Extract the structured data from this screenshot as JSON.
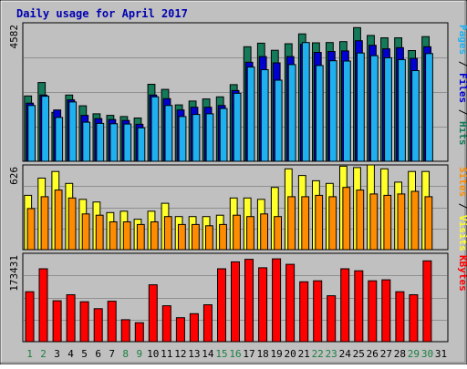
{
  "colors": {
    "background": "#c0c0c0",
    "title": "#0000b0",
    "pages": "#1fb0f0",
    "files": "#0000d0",
    "hits": "#147a5a",
    "visits": "#ffff2a",
    "sites": "#ff8c00",
    "kbytes": "#ff0000",
    "weekend_label": "#1a8040",
    "weekday_label": "#000000"
  },
  "chart_data": {
    "type": "bar",
    "title": "Daily usage for April 2017",
    "categories": [
      "1",
      "2",
      "3",
      "4",
      "5",
      "6",
      "7",
      "8",
      "9",
      "10",
      "11",
      "12",
      "13",
      "14",
      "15",
      "16",
      "17",
      "18",
      "19",
      "20",
      "21",
      "22",
      "23",
      "24",
      "25",
      "26",
      "27",
      "28",
      "29",
      "30",
      "31"
    ],
    "weekend_days": [
      "1",
      "2",
      "8",
      "9",
      "15",
      "16",
      "22",
      "23",
      "29",
      "30"
    ],
    "panels": [
      {
        "id": "requests",
        "axis_max_label": "4582",
        "ylim": [
          0,
          4582
        ],
        "grid": true,
        "legend_parts": [
          {
            "text": "Pages",
            "series": "Pages"
          },
          {
            "text": " / ",
            "series": null
          },
          {
            "text": "Files",
            "series": "Files"
          },
          {
            "text": " / ",
            "series": null
          },
          {
            "text": "Hits",
            "series": "Hits"
          }
        ],
        "series": [
          {
            "name": "Hits",
            "color": "#147a5a",
            "values": [
              2190,
              2640,
              1640,
              2220,
              1860,
              1590,
              1540,
              1500,
              1450,
              2580,
              2410,
              1890,
              2020,
              2090,
              2160,
              2570,
              3840,
              3960,
              3720,
              3940,
              4270,
              3970,
              3980,
              4010,
              4480,
              4220,
              4140,
              4140,
              3710,
              4180,
              0
            ]
          },
          {
            "name": "Files",
            "color": "#0000d0",
            "values": [
              1950,
              2220,
              1720,
              2060,
              1540,
              1430,
              1400,
              1370,
              1240,
              2220,
              2100,
              1720,
              1810,
              1810,
              1870,
              2370,
              3320,
              3510,
              3300,
              3510,
              3920,
              3650,
              3680,
              3700,
              4040,
              3890,
              3770,
              3810,
              3450,
              3840,
              0
            ]
          },
          {
            "name": "Pages",
            "color": "#1fb0f0",
            "values": [
              1870,
              2180,
              1470,
              1990,
              1310,
              1270,
              1260,
              1250,
              1120,
              2160,
              1870,
              1500,
              1570,
              1590,
              1770,
              2280,
              3160,
              3070,
              2720,
              3240,
              3980,
              3210,
              3370,
              3360,
              3630,
              3540,
              3470,
              3410,
              3040,
              3610,
              0
            ]
          }
        ]
      },
      {
        "id": "visitors",
        "axis_max_label": "626",
        "ylim": [
          0,
          626
        ],
        "grid": true,
        "legend_parts": [
          {
            "text": "Sites",
            "series": "Sites"
          },
          {
            "text": " / ",
            "series": null
          },
          {
            "text": "Visits",
            "series": "Visits"
          }
        ],
        "series": [
          {
            "name": "Visits",
            "color": "#ffff2a",
            "values": [
              410,
              540,
              590,
              500,
              380,
              360,
              280,
              290,
              230,
              290,
              350,
              250,
              250,
              250,
              260,
              390,
              390,
              380,
              470,
              610,
              560,
              520,
              500,
              630,
              620,
              640,
              610,
              510,
              590,
              590,
              0
            ]
          },
          {
            "name": "Sites",
            "color": "#ff8c00",
            "values": [
              310,
              400,
              450,
              390,
              270,
              260,
              210,
              210,
              190,
              210,
              250,
              190,
              190,
              180,
              190,
              260,
              250,
              270,
              250,
              400,
              400,
              410,
              400,
              470,
              450,
              420,
              410,
              420,
              440,
              400,
              0
            ]
          }
        ]
      },
      {
        "id": "kbytes",
        "axis_max_label": "173431",
        "ylim": [
          0,
          173431
        ],
        "grid": true,
        "legend_parts": [
          {
            "text": "KBytes",
            "series": "KBytes"
          }
        ],
        "series": [
          {
            "name": "KBytes",
            "color": "#ff0000",
            "values": [
              100000,
              146000,
              82000,
              94000,
              80000,
              66000,
              81000,
              44000,
              38000,
              114000,
              72000,
              48000,
              56000,
              74000,
              146000,
              160000,
              165000,
              148000,
              166000,
              155000,
              120000,
              122000,
              92000,
              146000,
              142000,
              122000,
              124000,
              100000,
              94000,
              162000,
              0
            ]
          }
        ]
      }
    ]
  }
}
